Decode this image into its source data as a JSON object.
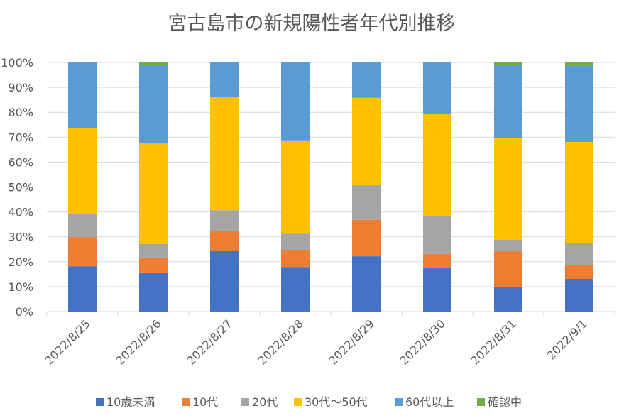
{
  "chart_data": {
    "type": "bar",
    "stacked": "percent",
    "title": "宮古島市の新規陽性者年代別推移",
    "xlabel": "",
    "ylabel": "",
    "ylim": [
      0,
      100
    ],
    "yticks": [
      "0%",
      "10%",
      "20%",
      "30%",
      "40%",
      "50%",
      "60%",
      "70%",
      "80%",
      "90%",
      "100%"
    ],
    "grid": true,
    "legend_position": "bottom",
    "categories": [
      "2022/8/25",
      "2022/8/26",
      "2022/8/27",
      "2022/8/28",
      "2022/8/29",
      "2022/8/30",
      "2022/8/31",
      "2022/9/1"
    ],
    "series": [
      {
        "name": "10歳未満",
        "color": "#4472C4",
        "values": [
          18.2,
          15.7,
          24.5,
          17.9,
          22.2,
          17.7,
          10.0,
          13.1
        ]
      },
      {
        "name": "10代",
        "color": "#ED7D31",
        "values": [
          11.7,
          6.0,
          7.7,
          6.9,
          14.6,
          5.4,
          14.2,
          5.7
        ]
      },
      {
        "name": "20代",
        "color": "#A5A5A5",
        "values": [
          9.4,
          5.4,
          8.5,
          6.5,
          13.9,
          15.1,
          4.6,
          8.8
        ]
      },
      {
        "name": "30代～50代",
        "color": "#FFC000",
        "values": [
          34.5,
          40.7,
          45.3,
          37.4,
          35.1,
          41.3,
          41.0,
          40.5
        ]
      },
      {
        "name": "60代以上",
        "color": "#5B9BD5",
        "values": [
          26.2,
          31.3,
          14.0,
          31.3,
          14.2,
          20.5,
          29.1,
          30.5
        ]
      },
      {
        "name": "確認中",
        "color": "#70AD47",
        "values": [
          0,
          0.9,
          0,
          0,
          0,
          0,
          1.1,
          1.4
        ]
      }
    ]
  }
}
